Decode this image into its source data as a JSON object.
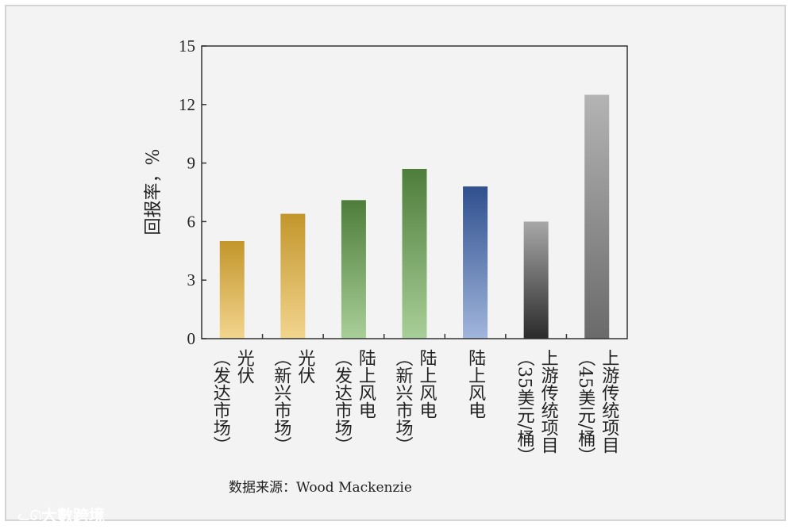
{
  "chart_data": {
    "type": "bar",
    "ylabel": "回报率，%",
    "ylim": [
      0,
      15
    ],
    "yticks": [
      0,
      3,
      6,
      9,
      12,
      15
    ],
    "grid": false,
    "categories": [
      {
        "lines": [
          "光伏",
          "（发达市场）"
        ],
        "value": 5.0,
        "color_top": "#c3962b",
        "color_bottom": "#f2d58e"
      },
      {
        "lines": [
          "光伏",
          "（新兴市场）"
        ],
        "value": 6.4,
        "color_top": "#c3962b",
        "color_bottom": "#f2d58e"
      },
      {
        "lines": [
          "陆上风电",
          "（发达市场）"
        ],
        "value": 7.1,
        "color_top": "#4e7d3a",
        "color_bottom": "#a8cf98"
      },
      {
        "lines": [
          "陆上风电",
          "（新兴市场）"
        ],
        "value": 8.7,
        "color_top": "#4e7d3a",
        "color_bottom": "#a8cf98"
      },
      {
        "lines": [
          "陆上风电"
        ],
        "value": 7.8,
        "color_top": "#2f4f8e",
        "color_bottom": "#a1b6dc"
      },
      {
        "lines": [
          "上游传统项目",
          "（35美元/桶）"
        ],
        "value": 6.0,
        "color_top": "#a8a8a8",
        "color_bottom": "#2a2a2a"
      },
      {
        "lines": [
          "上游传统项目",
          "（45美元/桶）"
        ],
        "value": 12.5,
        "color_top": "#b4b4b4",
        "color_bottom": "#6a6a6a"
      }
    ],
    "source": "数据来源：Wood Mackenzie"
  },
  "watermark": "大數跨境"
}
